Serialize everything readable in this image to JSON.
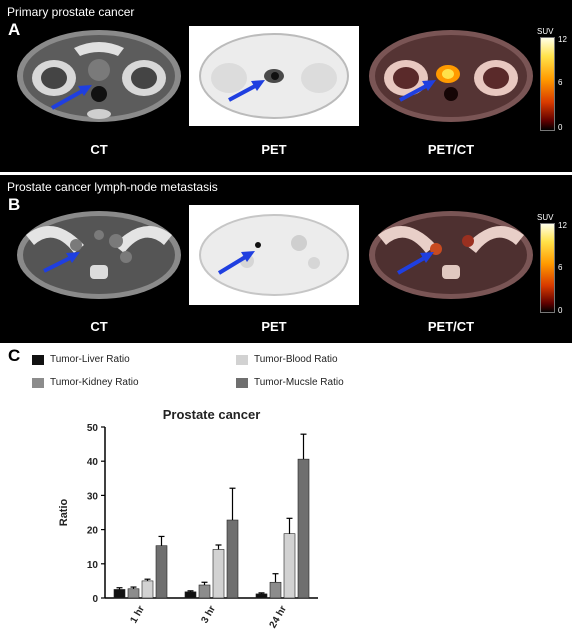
{
  "panel_a": {
    "caption": "Primary prostate cancer",
    "letter": "A",
    "labels": [
      "CT",
      "PET",
      "PET/CT"
    ],
    "colorbar": {
      "unit": "SUV",
      "max": "12",
      "mid": "6",
      "min": "0"
    }
  },
  "panel_b": {
    "caption": "Prostate cancer lymph-node metastasis",
    "letter": "B",
    "labels": [
      "CT",
      "PET",
      "PET/CT"
    ],
    "colorbar": {
      "unit": "SUV",
      "max": "12",
      "mid": "6",
      "min": "0"
    }
  },
  "panel_c": {
    "letter": "C"
  },
  "colors": {
    "arrow": "#1f3fe0",
    "series": [
      "#111111",
      "#8c8c8c",
      "#d2d2d2",
      "#6f6f6f"
    ]
  },
  "chart_data": {
    "type": "bar",
    "title": "Prostate cancer",
    "xlabel": "",
    "ylabel": "Ratio",
    "ylim": [
      0,
      50
    ],
    "yticks": [
      "0",
      "10",
      "20",
      "30",
      "40",
      "50"
    ],
    "categories": [
      "1 hr",
      "3 hr",
      "24 hr"
    ],
    "legend_placement": "top",
    "series": [
      {
        "name": "Tumor-Liver Ratio",
        "values": [
          2.5,
          1.8,
          1.2
        ],
        "errors": [
          0.5,
          0.3,
          0.3
        ]
      },
      {
        "name": "Tumor-Kidney Ratio",
        "values": [
          2.7,
          3.8,
          4.6
        ],
        "errors": [
          0.5,
          0.8,
          2.5
        ]
      },
      {
        "name": "Tumor-Blood Ratio",
        "values": [
          5.0,
          14.2,
          18.8
        ],
        "errors": [
          0.5,
          1.3,
          4.5
        ]
      },
      {
        "name": "Tumor-Mucsle Ratio",
        "values": [
          15.3,
          22.8,
          40.6
        ],
        "errors": [
          2.7,
          9.3,
          7.3
        ]
      }
    ]
  }
}
